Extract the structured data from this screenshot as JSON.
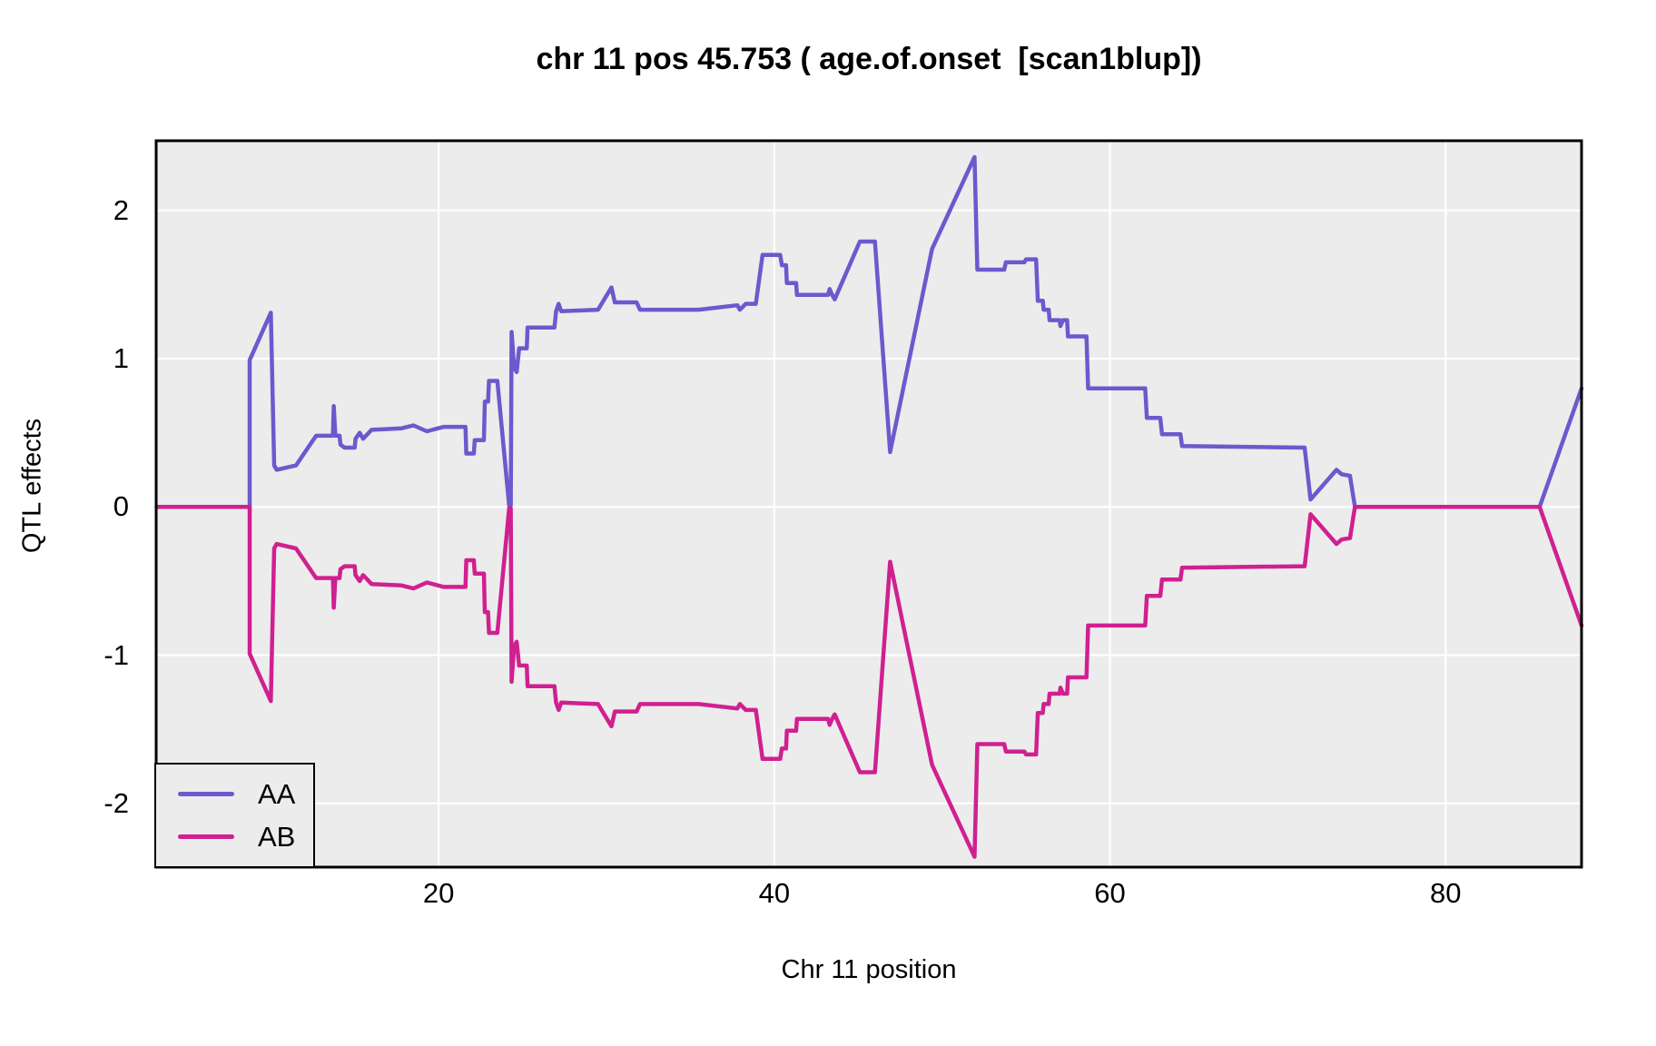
{
  "title": "chr 11 pos 45.753 ( age.of.onset  [scan1blup])",
  "y_axis": {
    "label": "QTL effects"
  },
  "x_axis": {
    "label": "Chr 11 position"
  },
  "colors": {
    "plot_bg": "#ECECEC",
    "grid": "#FFFFFF",
    "border": "#000000",
    "text": "#000000",
    "series_aa": "#6A5ACD",
    "series_ab": "#D02090"
  },
  "legend": {
    "entries": [
      {
        "label": "AA",
        "color": "#6A5ACD"
      },
      {
        "label": "AB",
        "color": "#D02090"
      }
    ]
  },
  "chart_data": {
    "type": "line",
    "title": "chr 11 pos 45.753 ( age.of.onset  [scan1blup])",
    "xlabel": "Chr 11 position",
    "ylabel": "QTL effects",
    "xlim": [
      3.17,
      88.1
    ],
    "ylim": [
      -2.43,
      2.47
    ],
    "x_ticks": [
      20,
      40,
      60,
      80
    ],
    "x_tick_labels": [
      "20",
      "40",
      "60",
      "80"
    ],
    "y_ticks": [
      -2,
      -1,
      0,
      1,
      2
    ],
    "y_tick_labels": [
      "-2",
      "-1",
      "0",
      "1",
      "2"
    ],
    "grid": true,
    "legend_position": "bottom-left",
    "series": [
      {
        "name": "AA",
        "color": "#6A5ACD",
        "points": [
          [
            3.2,
            0
          ],
          [
            8.74,
            0
          ],
          [
            8.74,
            0.99
          ],
          [
            10,
            1.31
          ],
          [
            10.2,
            0.28
          ],
          [
            10.35,
            0.25
          ],
          [
            11.5,
            0.28
          ],
          [
            12.7,
            0.48
          ],
          [
            13.7,
            0.48
          ],
          [
            13.75,
            0.68
          ],
          [
            13.85,
            0.48
          ],
          [
            14.1,
            0.48
          ],
          [
            14.15,
            0.42
          ],
          [
            14.4,
            0.4
          ],
          [
            15,
            0.4
          ],
          [
            15.05,
            0.46
          ],
          [
            15.3,
            0.5
          ],
          [
            15.5,
            0.46
          ],
          [
            15.75,
            0.49
          ],
          [
            16,
            0.52
          ],
          [
            17.8,
            0.53
          ],
          [
            18.5,
            0.55
          ],
          [
            19.3,
            0.51
          ],
          [
            20.3,
            0.54
          ],
          [
            21.6,
            0.54
          ],
          [
            21.65,
            0.36
          ],
          [
            22.1,
            0.36
          ],
          [
            22.15,
            0.45
          ],
          [
            22.7,
            0.45
          ],
          [
            22.75,
            0.71
          ],
          [
            22.95,
            0.71
          ],
          [
            23,
            0.85
          ],
          [
            23.5,
            0.85
          ],
          [
            24.2,
            0.01
          ],
          [
            24.3,
            0.01
          ],
          [
            24.35,
            1.18
          ],
          [
            24.5,
            0.94
          ],
          [
            24.65,
            0.91
          ],
          [
            24.8,
            1.07
          ],
          [
            25.25,
            1.07
          ],
          [
            25.3,
            1.21
          ],
          [
            26.9,
            1.21
          ],
          [
            27,
            1.32
          ],
          [
            27.15,
            1.37
          ],
          [
            27.3,
            1.32
          ],
          [
            29.5,
            1.33
          ],
          [
            30.3,
            1.48
          ],
          [
            30.5,
            1.38
          ],
          [
            31.8,
            1.38
          ],
          [
            32,
            1.33
          ],
          [
            33,
            1.33
          ],
          [
            35.5,
            1.33
          ],
          [
            37.8,
            1.36
          ],
          [
            37.95,
            1.33
          ],
          [
            38.3,
            1.37
          ],
          [
            38.9,
            1.37
          ],
          [
            39.3,
            1.7
          ],
          [
            40.35,
            1.7
          ],
          [
            40.45,
            1.63
          ],
          [
            40.7,
            1.63
          ],
          [
            40.75,
            1.51
          ],
          [
            41.3,
            1.51
          ],
          [
            41.35,
            1.43
          ],
          [
            43.2,
            1.43
          ],
          [
            43.3,
            1.47
          ],
          [
            43.45,
            1.43
          ],
          [
            43.6,
            1.4
          ],
          [
            45.1,
            1.79
          ],
          [
            46,
            1.79
          ],
          [
            46.9,
            0.37
          ],
          [
            49.4,
            1.74
          ],
          [
            51.93,
            2.36
          ],
          [
            52.1,
            1.6
          ],
          [
            53.7,
            1.6
          ],
          [
            53.8,
            1.65
          ],
          [
            54.9,
            1.65
          ],
          [
            55,
            1.67
          ],
          [
            55.6,
            1.67
          ],
          [
            55.7,
            1.39
          ],
          [
            56,
            1.39
          ],
          [
            56.05,
            1.33
          ],
          [
            56.35,
            1.33
          ],
          [
            56.4,
            1.26
          ],
          [
            57,
            1.26
          ],
          [
            57.05,
            1.22
          ],
          [
            57.2,
            1.26
          ],
          [
            57.45,
            1.26
          ],
          [
            57.5,
            1.15
          ],
          [
            58.6,
            1.15
          ],
          [
            58.7,
            0.8
          ],
          [
            62.1,
            0.8
          ],
          [
            62.2,
            0.6
          ],
          [
            63,
            0.6
          ],
          [
            63.1,
            0.49
          ],
          [
            64.2,
            0.49
          ],
          [
            64.3,
            0.41
          ],
          [
            71.6,
            0.4
          ],
          [
            71.95,
            0.05
          ],
          [
            73.5,
            0.25
          ],
          [
            73.8,
            0.22
          ],
          [
            74.3,
            0.21
          ],
          [
            74.6,
            0
          ],
          [
            85.6,
            0
          ],
          [
            88.1,
            0.8
          ]
        ]
      },
      {
        "name": "AB",
        "color": "#D02090",
        "points": [
          [
            3.2,
            0
          ],
          [
            8.74,
            0
          ],
          [
            8.74,
            -0.99
          ],
          [
            10,
            -1.31
          ],
          [
            10.2,
            -0.28
          ],
          [
            10.35,
            -0.25
          ],
          [
            11.5,
            -0.28
          ],
          [
            12.7,
            -0.48
          ],
          [
            13.7,
            -0.48
          ],
          [
            13.75,
            -0.68
          ],
          [
            13.85,
            -0.48
          ],
          [
            14.1,
            -0.48
          ],
          [
            14.15,
            -0.42
          ],
          [
            14.4,
            -0.4
          ],
          [
            15,
            -0.4
          ],
          [
            15.05,
            -0.46
          ],
          [
            15.3,
            -0.5
          ],
          [
            15.5,
            -0.46
          ],
          [
            15.75,
            -0.49
          ],
          [
            16,
            -0.52
          ],
          [
            17.8,
            -0.53
          ],
          [
            18.5,
            -0.55
          ],
          [
            19.3,
            -0.51
          ],
          [
            20.3,
            -0.54
          ],
          [
            21.6,
            -0.54
          ],
          [
            21.65,
            -0.36
          ],
          [
            22.1,
            -0.36
          ],
          [
            22.15,
            -0.45
          ],
          [
            22.7,
            -0.45
          ],
          [
            22.75,
            -0.71
          ],
          [
            22.95,
            -0.71
          ],
          [
            23,
            -0.85
          ],
          [
            23.5,
            -0.85
          ],
          [
            24.2,
            -0.01
          ],
          [
            24.3,
            -0.01
          ],
          [
            24.35,
            -1.18
          ],
          [
            24.5,
            -0.94
          ],
          [
            24.65,
            -0.91
          ],
          [
            24.8,
            -1.07
          ],
          [
            25.25,
            -1.07
          ],
          [
            25.3,
            -1.21
          ],
          [
            26.9,
            -1.21
          ],
          [
            27,
            -1.32
          ],
          [
            27.15,
            -1.37
          ],
          [
            27.3,
            -1.32
          ],
          [
            29.5,
            -1.33
          ],
          [
            30.3,
            -1.48
          ],
          [
            30.5,
            -1.38
          ],
          [
            31.8,
            -1.38
          ],
          [
            32,
            -1.33
          ],
          [
            33,
            -1.33
          ],
          [
            35.5,
            -1.33
          ],
          [
            37.8,
            -1.36
          ],
          [
            37.95,
            -1.33
          ],
          [
            38.3,
            -1.37
          ],
          [
            38.9,
            -1.37
          ],
          [
            39.3,
            -1.7
          ],
          [
            40.35,
            -1.7
          ],
          [
            40.45,
            -1.63
          ],
          [
            40.7,
            -1.63
          ],
          [
            40.75,
            -1.51
          ],
          [
            41.3,
            -1.51
          ],
          [
            41.35,
            -1.43
          ],
          [
            43.2,
            -1.43
          ],
          [
            43.3,
            -1.47
          ],
          [
            43.45,
            -1.43
          ],
          [
            43.6,
            -1.4
          ],
          [
            45.1,
            -1.79
          ],
          [
            46,
            -1.79
          ],
          [
            46.9,
            -0.37
          ],
          [
            49.4,
            -1.74
          ],
          [
            51.93,
            -2.36
          ],
          [
            52.1,
            -1.6
          ],
          [
            53.7,
            -1.6
          ],
          [
            53.8,
            -1.65
          ],
          [
            54.9,
            -1.65
          ],
          [
            55,
            -1.67
          ],
          [
            55.6,
            -1.67
          ],
          [
            55.7,
            -1.39
          ],
          [
            56,
            -1.39
          ],
          [
            56.05,
            -1.33
          ],
          [
            56.35,
            -1.33
          ],
          [
            56.4,
            -1.26
          ],
          [
            57,
            -1.26
          ],
          [
            57.05,
            -1.22
          ],
          [
            57.2,
            -1.26
          ],
          [
            57.45,
            -1.26
          ],
          [
            57.5,
            -1.15
          ],
          [
            58.6,
            -1.15
          ],
          [
            58.7,
            -0.8
          ],
          [
            62.1,
            -0.8
          ],
          [
            62.2,
            -0.6
          ],
          [
            63,
            -0.6
          ],
          [
            63.1,
            -0.49
          ],
          [
            64.2,
            -0.49
          ],
          [
            64.3,
            -0.41
          ],
          [
            71.6,
            -0.4
          ],
          [
            71.95,
            -0.05
          ],
          [
            73.5,
            -0.25
          ],
          [
            73.8,
            -0.22
          ],
          [
            74.3,
            -0.21
          ],
          [
            74.6,
            0
          ],
          [
            85.6,
            0
          ],
          [
            88.1,
            -0.8
          ]
        ]
      }
    ]
  }
}
